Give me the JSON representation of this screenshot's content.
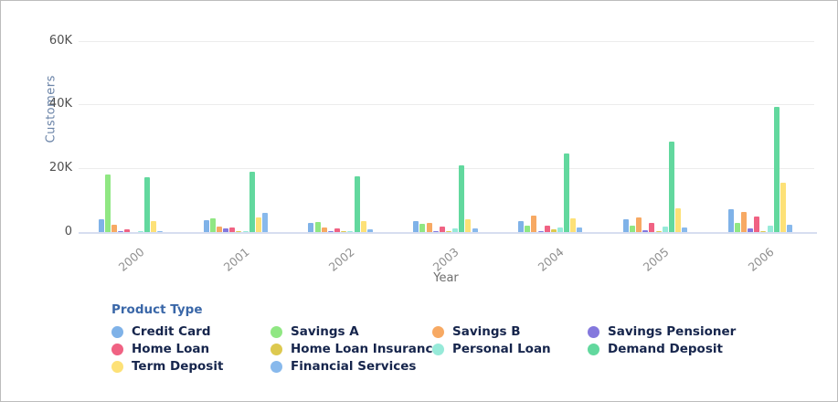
{
  "chart_data": {
    "type": "bar",
    "title": "",
    "xlabel": "Year",
    "ylabel": "Customers",
    "legend_title": "Product Type",
    "categories": [
      "2000",
      "2001",
      "2002",
      "2003",
      "2004",
      "2005",
      "2006"
    ],
    "y_ticks": [
      {
        "label": "0",
        "value": 0
      },
      {
        "label": "20K",
        "value": 20000
      },
      {
        "label": "40K",
        "value": 40000
      },
      {
        "label": "60K",
        "value": 60000
      }
    ],
    "ylim": [
      0,
      60000
    ],
    "grid": true,
    "legend_position": "bottom",
    "series": [
      {
        "name": "Credit Card",
        "color": "#7fb2e8",
        "values": [
          4100,
          3700,
          2900,
          3400,
          3500,
          4100,
          7100
        ]
      },
      {
        "name": "Savings A",
        "color": "#90e783",
        "values": [
          18000,
          4300,
          3200,
          2600,
          2000,
          2100,
          2900
        ]
      },
      {
        "name": "Savings B",
        "color": "#f7a963",
        "values": [
          2300,
          1800,
          1400,
          2900,
          5100,
          4600,
          6300
        ]
      },
      {
        "name": "Savings Pensioner",
        "color": "#8478dd",
        "values": [
          200,
          1100,
          300,
          300,
          300,
          700,
          1200
        ]
      },
      {
        "name": "Home Loan",
        "color": "#f06283",
        "values": [
          800,
          1400,
          1100,
          1700,
          2000,
          2900,
          4900
        ]
      },
      {
        "name": "Home Loan Insurance",
        "color": "#ddc94f",
        "values": [
          100,
          200,
          200,
          200,
          900,
          300,
          300
        ]
      },
      {
        "name": "Personal Loan",
        "color": "#97ead9",
        "values": [
          200,
          300,
          200,
          1100,
          1400,
          1700,
          2000
        ]
      },
      {
        "name": "Demand Deposit",
        "color": "#62d89e",
        "values": [
          17100,
          18900,
          17400,
          21000,
          24600,
          28300,
          39300
        ]
      },
      {
        "name": "Term Deposit",
        "color": "#fde177",
        "values": [
          3500,
          4600,
          3500,
          4000,
          4300,
          7400,
          15500
        ]
      },
      {
        "name": "Financial Services",
        "color": "#88b9ec",
        "values": [
          300,
          6100,
          900,
          1100,
          1400,
          1500,
          2300
        ]
      }
    ]
  }
}
